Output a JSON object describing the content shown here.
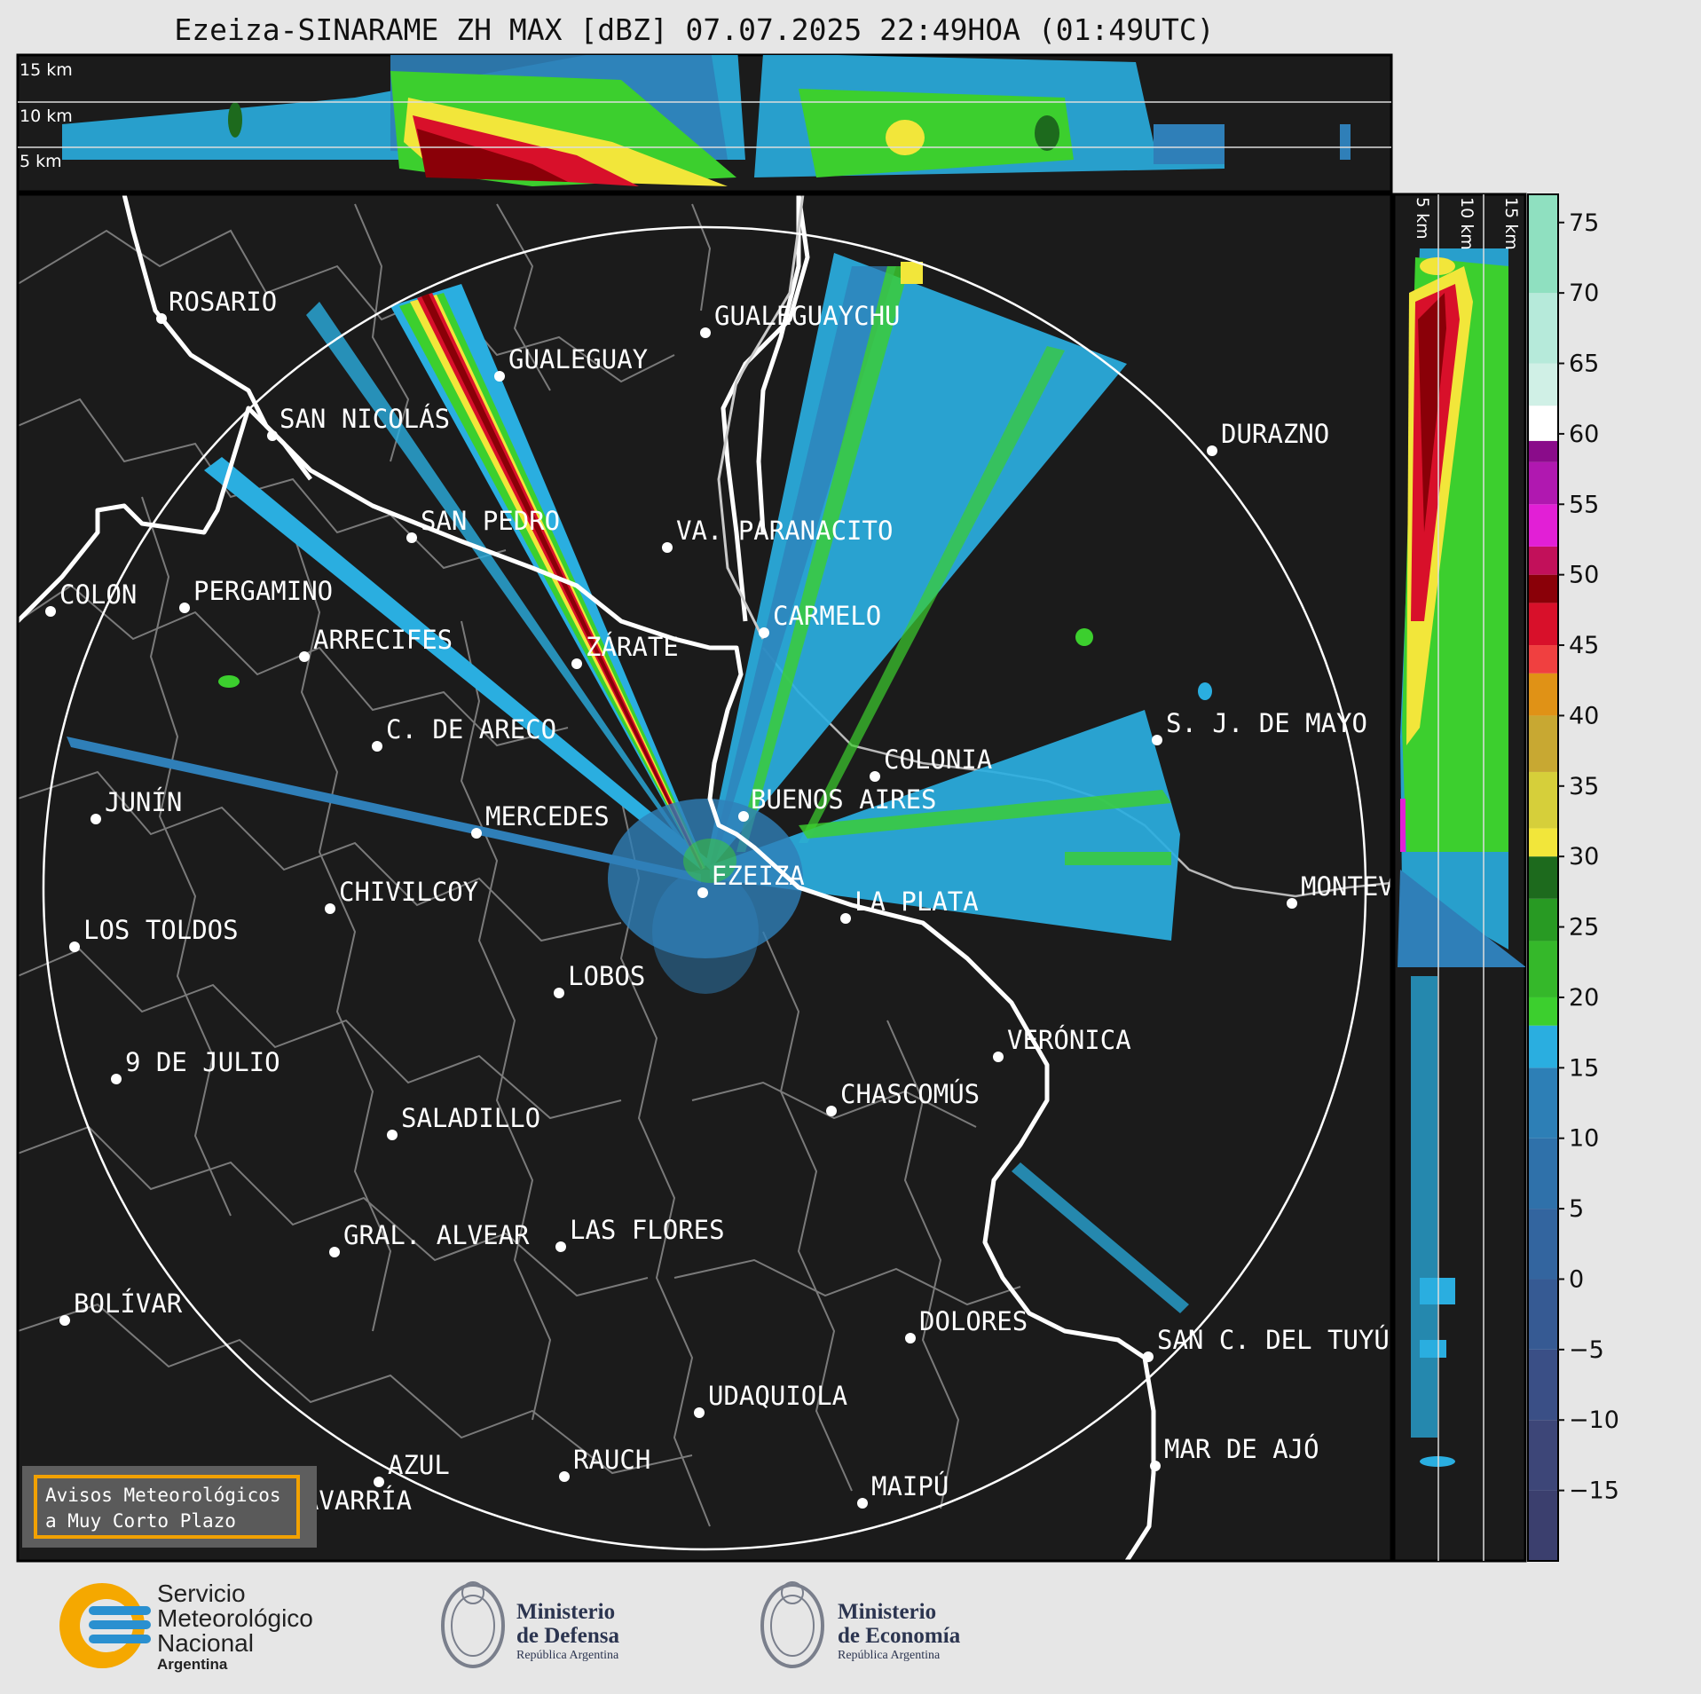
{
  "title": "Ezeiza-SINARAME ZH MAX [dBZ] 07.07.2025 22:49HOA (01:49UTC)",
  "top_panel_labels": [
    "15 km",
    "10 km",
    "5 km"
  ],
  "side_panel_labels": [
    "5 km",
    "10 km",
    "15 km"
  ],
  "colorbar": {
    "ticks": [
      "75",
      "70",
      "65",
      "60",
      "55",
      "50",
      "45",
      "40",
      "35",
      "30",
      "25",
      "20",
      "15",
      "10",
      "5",
      "0",
      "−5",
      "−10",
      "−15"
    ],
    "colors": {
      "dark": "#383d6e",
      "blue": "#2f7fb8",
      "cyan": "#2aaee0",
      "green": "#3ccf2e",
      "darkgreen": "#1d6a1d",
      "yellow": "#f2e63a",
      "orange": "#e09216",
      "red": "#d8102a",
      "darkred": "#8a0008",
      "magenta": "#e21fd6",
      "purple": "#8a0c8a",
      "white": "#ffffff",
      "mint": "#8fe0c0"
    }
  },
  "cities": [
    "ROSARIO",
    "GUALEGUAYCHU",
    "GUALEGUAY",
    "SAN NICOLÁS",
    "DURAZNO",
    "SAN PEDRO",
    "VA. PARANACITO",
    "COLON",
    "PERGAMINO",
    "CARMELO",
    "ARRECIFES",
    "ZÁRATE",
    "S. J. DE MAYO",
    "C. DE ARECO",
    "COLONIA",
    "JUNÍN",
    "BUENOS AIRES",
    "MERCEDES",
    "EZEIZA",
    "MONTEVIDEO",
    "CHIVILCOY",
    "LA PLATA",
    "LOS TOLDOS",
    "LOBOS",
    "VERÓNICA",
    "9 DE JULIO",
    "CHASCOMÚS",
    "SALADILLO",
    "LAS FLORES",
    "GRAL. ALVEAR",
    "DOLORES",
    "BOLÍVAR",
    "SAN C. DEL TUYÚ",
    "UDAQUIOLA",
    "MAR DE AJÓ",
    "AZUL",
    "RAUCH",
    "OLAVARRÍA",
    "MAIPÚ"
  ],
  "avisos": {
    "line1": "Avisos Meteorológicos",
    "line2": "a Muy Corto Plazo"
  },
  "logos": {
    "smn": {
      "line1": "Servicio",
      "line2": "Meteorológico",
      "line3": "Nacional",
      "line4": "Argentina"
    },
    "defensa": {
      "line1": "Ministerio",
      "line2": "de Defensa",
      "line3": "República Argentina"
    },
    "economia": {
      "line1": "Ministerio",
      "line2": "de Economía",
      "line3": "República Argentina"
    }
  }
}
